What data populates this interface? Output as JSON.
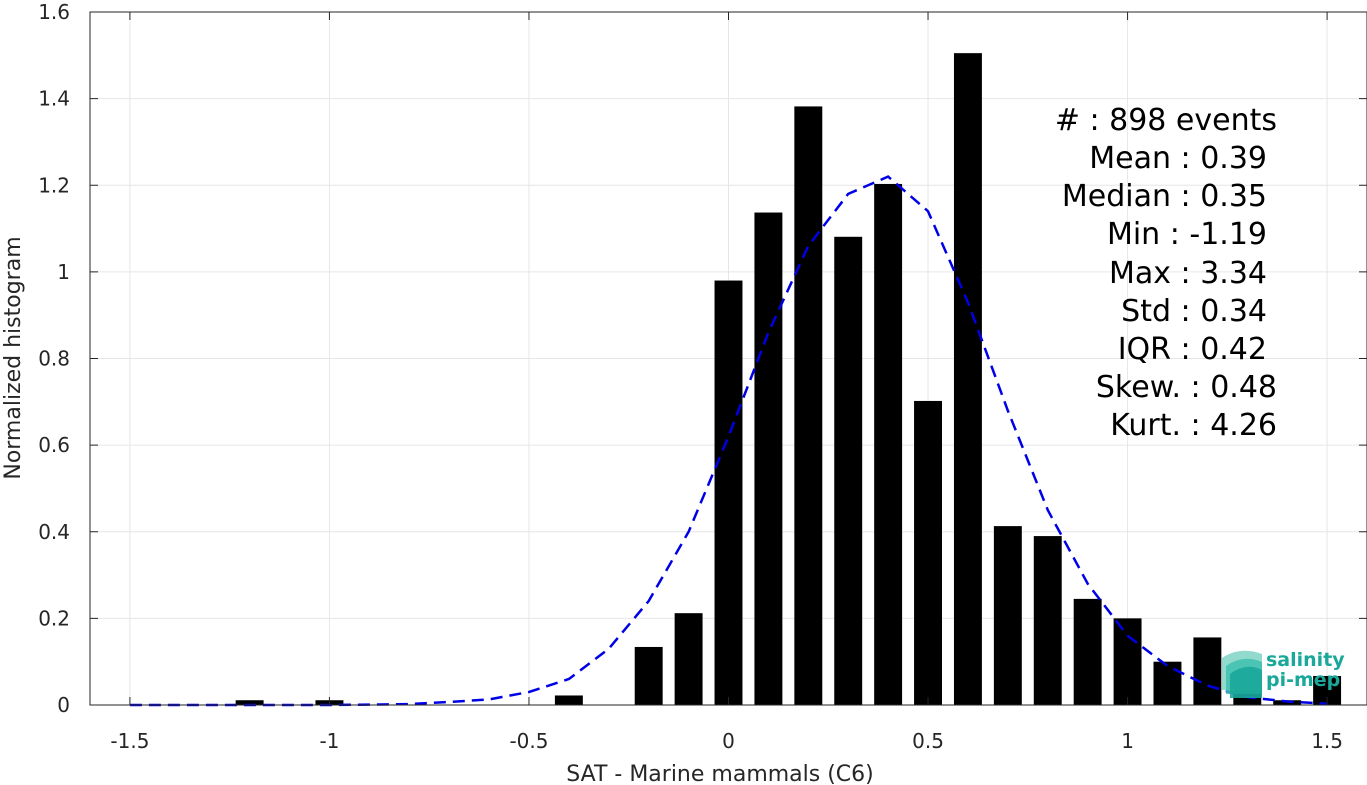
{
  "chart_data": {
    "type": "bar",
    "xlabel": "SAT - Marine mammals (C6)",
    "ylabel": "Normalized histogram",
    "xlim": [
      -1.6,
      1.6
    ],
    "ylim": [
      0,
      1.6
    ],
    "xticks": [
      -1.5,
      -1,
      -0.5,
      0,
      0.5,
      1,
      1.5
    ],
    "xtick_labels": [
      "-1.5",
      "-1",
      "-0.5",
      "0",
      "0.5",
      "1",
      "1.5"
    ],
    "yticks": [
      0,
      0.2,
      0.4,
      0.6,
      0.8,
      1,
      1.2,
      1.4,
      1.6
    ],
    "ytick_labels": [
      "0",
      "0.2",
      "0.4",
      "0.6",
      "0.8",
      "1",
      "1.2",
      "1.4",
      "1.6"
    ],
    "grid": true,
    "bar_width": 0.07,
    "bars": {
      "x": [
        -1.2,
        -1.0,
        -0.4,
        -0.2,
        -0.1,
        0.0,
        0.1,
        0.2,
        0.3,
        0.4,
        0.5,
        0.6,
        0.7,
        0.8,
        0.9,
        1.0,
        1.1,
        1.2,
        1.3,
        1.4,
        1.5
      ],
      "values": [
        0.011,
        0.011,
        0.022,
        0.134,
        0.212,
        0.98,
        1.137,
        1.382,
        1.081,
        1.203,
        0.702,
        1.505,
        0.413,
        0.39,
        0.245,
        0.2,
        0.1,
        0.156,
        0.045,
        0.011,
        0.067
      ]
    },
    "fit_curve": {
      "style": "dashed",
      "color": "#0000e6",
      "x": [
        -1.5,
        -1.4,
        -1.3,
        -1.2,
        -1.1,
        -1.0,
        -0.9,
        -0.8,
        -0.7,
        -0.6,
        -0.5,
        -0.4,
        -0.3,
        -0.2,
        -0.1,
        0.0,
        0.1,
        0.2,
        0.3,
        0.4,
        0.5,
        0.6,
        0.7,
        0.8,
        0.9,
        1.0,
        1.1,
        1.2,
        1.3,
        1.4,
        1.5
      ],
      "y": [
        0.0,
        0.0,
        0.0,
        0.0,
        0.0,
        0.0,
        0.001,
        0.002,
        0.007,
        0.013,
        0.03,
        0.06,
        0.13,
        0.24,
        0.4,
        0.62,
        0.86,
        1.06,
        1.18,
        1.22,
        1.14,
        0.93,
        0.68,
        0.45,
        0.28,
        0.16,
        0.09,
        0.045,
        0.018,
        0.008,
        0.003
      ]
    },
    "stats_lines": [
      "#  : 898 events",
      "Mean : 0.39",
      "Median : 0.35",
      "Min : -1.19",
      "Max : 3.34",
      "Std : 0.34",
      "IQR : 0.42",
      "Skew. : 0.48",
      "Kurt. : 4.26"
    ]
  },
  "logo": {
    "line1": "salinity",
    "line2": "pi-mep",
    "color": "#1aa89a"
  }
}
